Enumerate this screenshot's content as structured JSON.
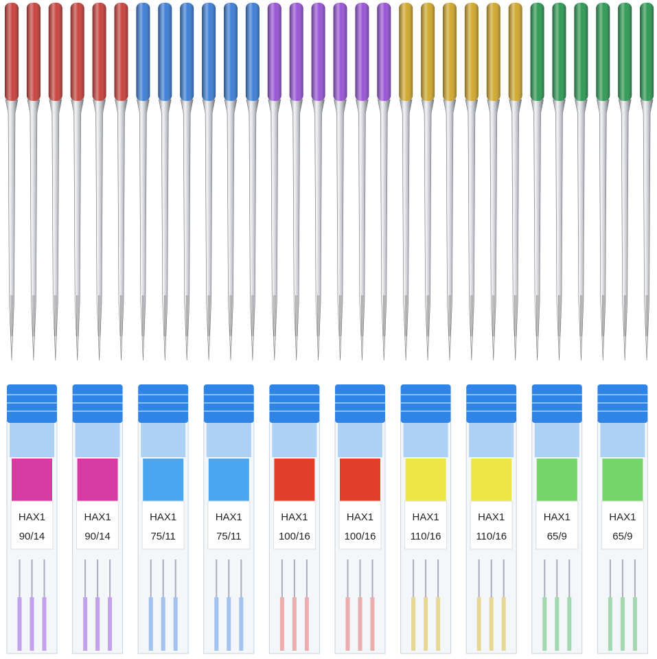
{
  "cases": [
    {
      "label": "HAX1",
      "size": "90/14"
    },
    {
      "label": "HAX1",
      "size": "90/14"
    },
    {
      "label": "HAX1",
      "size": "75/11"
    },
    {
      "label": "HAX1",
      "size": "75/11"
    },
    {
      "label": "HAX1",
      "size": "100/16"
    },
    {
      "label": "HAX1",
      "size": "100/16"
    },
    {
      "label": "HAX1",
      "size": "110/16"
    },
    {
      "label": "HAX1",
      "size": "110/16"
    },
    {
      "label": "HAX1",
      "size": "65/9"
    },
    {
      "label": "HAX1",
      "size": "65/9"
    }
  ]
}
